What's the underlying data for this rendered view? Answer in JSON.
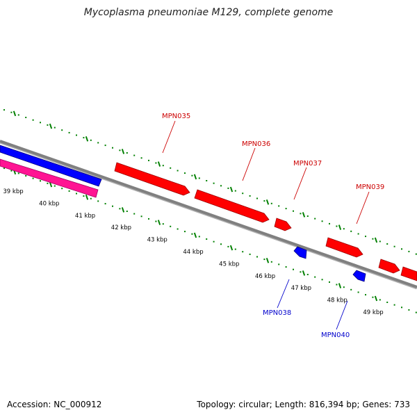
{
  "title": "Mycoplasma pneumoniae M129, complete genome",
  "accession": "Accession: NC_000912",
  "stats": "Topology: circular; Length: 816,394 bp; Genes: 733",
  "colors": {
    "backbone": "#808080",
    "forward_gene": "#ff0000",
    "reverse_gene": "#0000ff",
    "rna_gene": "#ff1493",
    "scale_ticks": "#008000",
    "forward_label": "#cc0000",
    "reverse_label": "#0000cc"
  },
  "scale": {
    "kbp_ticks": [
      {
        "kbp": 39,
        "label": "39 kbp"
      },
      {
        "kbp": 40,
        "label": "40 kbp"
      },
      {
        "kbp": 41,
        "label": "41 kbp"
      },
      {
        "kbp": 42,
        "label": "42 kbp"
      },
      {
        "kbp": 43,
        "label": "43 kbp"
      },
      {
        "kbp": 44,
        "label": "44 kbp"
      },
      {
        "kbp": 45,
        "label": "45 kbp"
      },
      {
        "kbp": 46,
        "label": "46 kbp"
      },
      {
        "kbp": 47,
        "label": "47 kbp"
      },
      {
        "kbp": 48,
        "label": "48 kbp"
      },
      {
        "kbp": 49,
        "label": "49 kbp"
      }
    ]
  },
  "genes": {
    "forward": [
      {
        "label": "MPN035"
      },
      {
        "label": "MPN036"
      },
      {
        "label": "MPN037"
      },
      {
        "label": "MPN039"
      }
    ],
    "reverse": [
      {
        "label": "MPN038"
      },
      {
        "label": "MPN040"
      }
    ]
  }
}
